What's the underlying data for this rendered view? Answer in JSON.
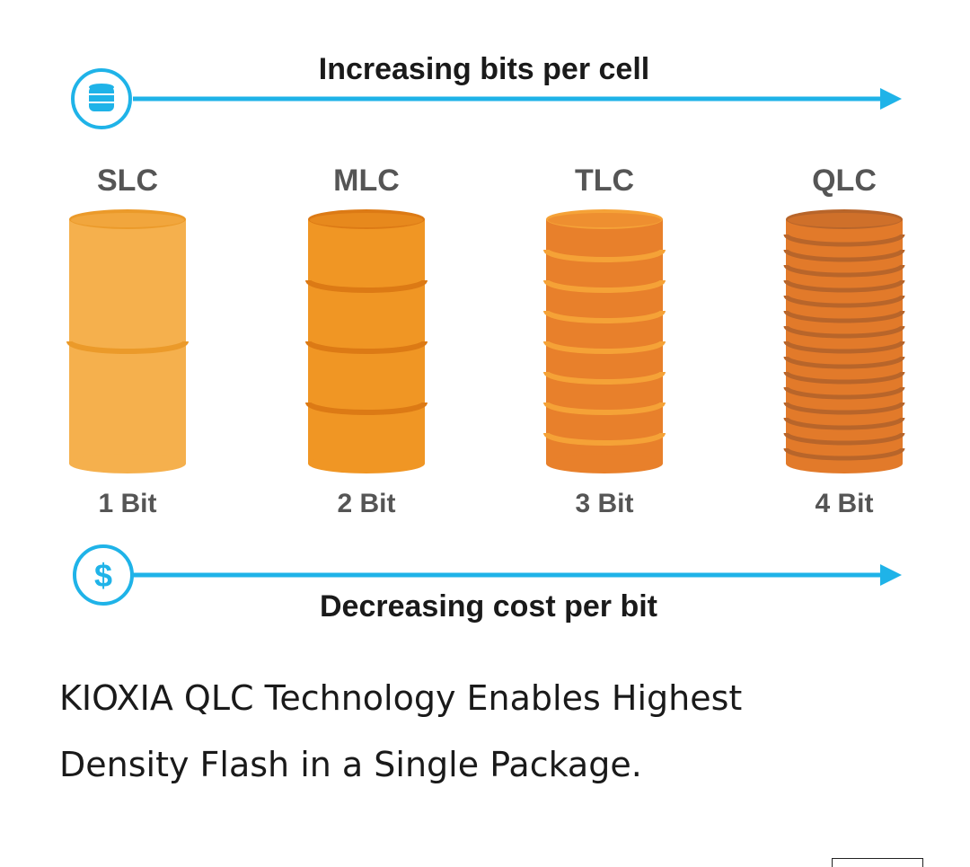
{
  "diagram": {
    "top_label": "Increasing bits per cell",
    "bottom_label": "Decreasing cost per bit",
    "top_icon": "database-icon",
    "bottom_icon": "dollar-icon",
    "bottom_icon_glyph": "$",
    "colors": {
      "arrow": "#1fb3e8",
      "icon_ring": "#1fb3e8",
      "heading": "#1a1a1a",
      "type_label": "#555555",
      "bit_label": "#555555"
    },
    "cells": [
      {
        "name": "SLC",
        "bits": "1 Bit",
        "bits_per_cell": 1,
        "disks": 2,
        "color": "#f5b04d",
        "seam": "#eb9a2a"
      },
      {
        "name": "MLC",
        "bits": "2 Bit",
        "bits_per_cell": 2,
        "disks": 4,
        "color": "#f09624",
        "seam": "#dc7a15"
      },
      {
        "name": "TLC",
        "bits": "3 Bit",
        "bits_per_cell": 3,
        "disks": 8,
        "color": "#e8802b",
        "seam": "#f5a237"
      },
      {
        "name": "QLC",
        "bits": "4 Bit",
        "bits_per_cell": 4,
        "disks": 16,
        "color": "#e27a2a",
        "seam": "#b8652a"
      }
    ]
  },
  "caption": {
    "line1": "KIOXIA QLC Technology Enables Highest",
    "line2": "Density Flash in a Single Package."
  }
}
